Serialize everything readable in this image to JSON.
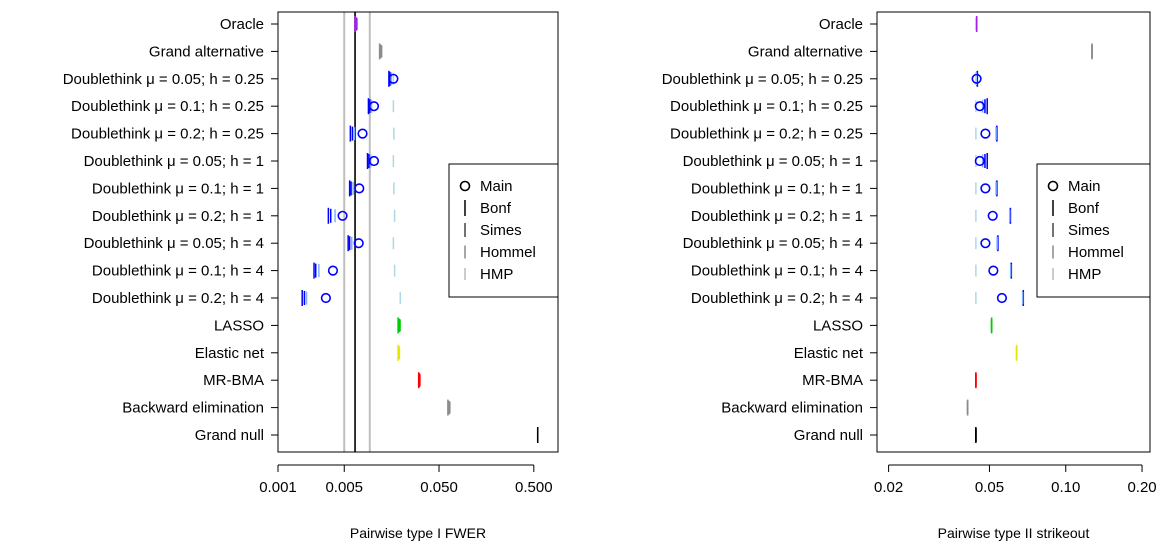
{
  "colors": {
    "Oracle": "#a020f0",
    "Grand alternative": "#8c8c8c",
    "Doublethink": "#0000ff",
    "Doublethink_light": "#7fb2ff",
    "Doublethink_pale": "#add8e6",
    "LASSO": "#00cc00",
    "Elastic net": "#e6e600",
    "MR-BMA": "#ff0000",
    "Backward elimination": "#8c8c8c",
    "Grand null": "#000000",
    "reference_gray": "#bebebe",
    "reference_black": "#000000"
  },
  "legend": {
    "position": "right-middle",
    "entries": [
      {
        "label": "Main",
        "symbol": "circle"
      },
      {
        "label": "Bonf",
        "symbol": "bar-tall"
      },
      {
        "label": "Simes",
        "symbol": "bar-mid"
      },
      {
        "label": "Hommel",
        "symbol": "bar-short"
      },
      {
        "label": "HMP",
        "symbol": "bar-tiny"
      }
    ]
  },
  "chart_data": [
    {
      "type": "scatter",
      "xlabel": "Pairwise type I FWER",
      "ylabel": "",
      "xscale": "log",
      "xlim": [
        0.001,
        0.9
      ],
      "xticks": [
        0.001,
        0.005,
        0.05,
        0.5
      ],
      "xticklabels": [
        "0.001",
        "0.005",
        "0.050",
        "0.500"
      ],
      "reference_lines": [
        {
          "x": 0.005,
          "color": "gray"
        },
        {
          "x": 0.0065,
          "color": "black"
        },
        {
          "x": 0.0093,
          "color": "gray"
        }
      ],
      "categories": [
        "Oracle",
        "Grand alternative",
        "Doublethink μ = 0.05; h = 0.25",
        "Doublethink μ = 0.1; h = 0.25",
        "Doublethink μ = 0.2; h = 0.25",
        "Doublethink μ = 0.05; h = 1",
        "Doublethink μ = 0.1; h = 1",
        "Doublethink μ = 0.2; h = 1",
        "Doublethink μ = 0.05; h = 4",
        "Doublethink μ = 0.1; h = 4",
        "Doublethink μ = 0.2; h = 4",
        "LASSO",
        "Elastic net",
        "MR-BMA",
        "Backward elimination",
        "Grand null"
      ],
      "rows": [
        {
          "name": "Oracle",
          "main": null,
          "bonf": 0.0065,
          "simes": 0.0066,
          "hommel": 0.0067,
          "hmp": 0.0068
        },
        {
          "name": "Grand alternative",
          "main": null,
          "bonf": 0.0118,
          "simes": 0.012,
          "hommel": 0.0122,
          "hmp": 0.0124
        },
        {
          "name": "Doublethink μ = 0.05; h = 0.25",
          "main": 0.0165,
          "bonf": 0.0148,
          "simes": 0.0152,
          "hommel": 0.0157,
          "hmp": 0.0165
        },
        {
          "name": "Doublethink μ = 0.1; h = 0.25",
          "main": 0.0103,
          "bonf": 0.009,
          "simes": 0.0093,
          "hommel": 0.0097,
          "hmp": 0.0165
        },
        {
          "name": "Doublethink μ = 0.2; h = 0.25",
          "main": 0.0078,
          "bonf": 0.0058,
          "simes": 0.0061,
          "hommel": 0.0064,
          "hmp": 0.0167
        },
        {
          "name": "Doublethink μ = 0.05; h = 1",
          "main": 0.0103,
          "bonf": 0.0088,
          "simes": 0.0091,
          "hommel": 0.0095,
          "hmp": 0.0165
        },
        {
          "name": "Doublethink μ = 0.1; h = 1",
          "main": 0.0072,
          "bonf": 0.0057,
          "simes": 0.0059,
          "hommel": 0.0062,
          "hmp": 0.0167
        },
        {
          "name": "Doublethink μ = 0.2; h = 1",
          "main": 0.0048,
          "bonf": 0.0034,
          "simes": 0.0036,
          "hommel": 0.004,
          "hmp": 0.017
        },
        {
          "name": "Doublethink μ = 0.05; h = 4",
          "main": 0.0071,
          "bonf": 0.0055,
          "simes": 0.0057,
          "hommel": 0.006,
          "hmp": 0.0165
        },
        {
          "name": "Doublethink μ = 0.1; h = 4",
          "main": 0.0038,
          "bonf": 0.0024,
          "simes": 0.0025,
          "hommel": 0.0027,
          "hmp": 0.017
        },
        {
          "name": "Doublethink μ = 0.2; h = 4",
          "main": 0.0032,
          "bonf": 0.0018,
          "simes": 0.0019,
          "hommel": 0.002,
          "hmp": 0.0195
        },
        {
          "name": "LASSO",
          "main": null,
          "bonf": 0.0185,
          "simes": 0.0188,
          "hommel": 0.0191,
          "hmp": 0.0194
        },
        {
          "name": "Elastic net",
          "main": null,
          "bonf": 0.0185,
          "simes": 0.0187,
          "hommel": 0.0189,
          "hmp": 0.0191
        },
        {
          "name": "MR-BMA",
          "main": null,
          "bonf": 0.0305,
          "simes": 0.0308,
          "hommel": 0.0311,
          "hmp": 0.0314
        },
        {
          "name": "Backward elimination",
          "main": null,
          "bonf": 0.062,
          "simes": 0.063,
          "hommel": 0.064,
          "hmp": 0.065
        },
        {
          "name": "Grand null",
          "main": null,
          "bonf": 0.55,
          "simes": 0.55,
          "hommel": 0.55,
          "hmp": 0.55
        }
      ]
    },
    {
      "type": "scatter",
      "xlabel": "Pairwise type II strikeout",
      "ylabel": "",
      "xscale": "log",
      "xlim": [
        0.018,
        0.215
      ],
      "xticks": [
        0.02,
        0.05,
        0.1,
        0.2
      ],
      "xticklabels": [
        "0.02",
        "0.05",
        "0.10",
        "0.20"
      ],
      "categories": [
        "Oracle",
        "Grand alternative",
        "Doublethink μ = 0.05; h = 0.25",
        "Doublethink μ = 0.1; h = 0.25",
        "Doublethink μ = 0.2; h = 0.25",
        "Doublethink μ = 0.05; h = 1",
        "Doublethink μ = 0.1; h = 1",
        "Doublethink μ = 0.2; h = 1",
        "Doublethink μ = 0.05; h = 4",
        "Doublethink μ = 0.1; h = 4",
        "Doublethink μ = 0.2; h = 4",
        "LASSO",
        "Elastic net",
        "MR-BMA",
        "Backward elimination",
        "Grand null"
      ],
      "rows": [
        {
          "name": "Oracle",
          "main": null,
          "bonf": 0.0445,
          "simes": 0.0445,
          "hommel": 0.0445,
          "hmp": 0.0445
        },
        {
          "name": "Grand alternative",
          "main": null,
          "bonf": 0.127,
          "simes": 0.127,
          "hommel": 0.127,
          "hmp": 0.127
        },
        {
          "name": "Doublethink μ = 0.05; h = 0.25",
          "main": 0.0445,
          "bonf": 0.0448,
          "simes": 0.0446,
          "hommel": 0.0444,
          "hmp": 0.0442
        },
        {
          "name": "Doublethink μ = 0.1; h = 0.25",
          "main": 0.0458,
          "bonf": 0.049,
          "simes": 0.048,
          "hommel": 0.047,
          "hmp": 0.0442
        },
        {
          "name": "Doublethink μ = 0.2; h = 0.25",
          "main": 0.0482,
          "bonf": 0.0535,
          "simes": 0.0533,
          "hommel": 0.0531,
          "hmp": 0.0442
        },
        {
          "name": "Doublethink μ = 0.05; h = 1",
          "main": 0.0458,
          "bonf": 0.049,
          "simes": 0.048,
          "hommel": 0.047,
          "hmp": 0.0442
        },
        {
          "name": "Doublethink μ = 0.1; h = 1",
          "main": 0.0482,
          "bonf": 0.0535,
          "simes": 0.0533,
          "hommel": 0.0531,
          "hmp": 0.0442
        },
        {
          "name": "Doublethink μ = 0.2; h = 1",
          "main": 0.0515,
          "bonf": 0.0605,
          "simes": 0.0603,
          "hommel": 0.0601,
          "hmp": 0.0442
        },
        {
          "name": "Doublethink μ = 0.05; h = 4",
          "main": 0.0482,
          "bonf": 0.054,
          "simes": 0.0538,
          "hommel": 0.0536,
          "hmp": 0.0442
        },
        {
          "name": "Doublethink μ = 0.1; h = 4",
          "main": 0.0518,
          "bonf": 0.061,
          "simes": 0.0608,
          "hommel": 0.0606,
          "hmp": 0.0442
        },
        {
          "name": "Doublethink μ = 0.2; h = 4",
          "main": 0.056,
          "bonf": 0.068,
          "simes": 0.0678,
          "hommel": 0.0676,
          "hmp": 0.0442
        },
        {
          "name": "LASSO",
          "main": null,
          "bonf": 0.051,
          "simes": 0.051,
          "hommel": 0.051,
          "hmp": 0.051
        },
        {
          "name": "Elastic net",
          "main": null,
          "bonf": 0.064,
          "simes": 0.064,
          "hommel": 0.064,
          "hmp": 0.064
        },
        {
          "name": "MR-BMA",
          "main": null,
          "bonf": 0.0442,
          "simes": 0.0442,
          "hommel": 0.0442,
          "hmp": 0.0442
        },
        {
          "name": "Backward elimination",
          "main": null,
          "bonf": 0.041,
          "simes": 0.041,
          "hommel": 0.041,
          "hmp": 0.041
        },
        {
          "name": "Grand null",
          "main": null,
          "bonf": 0.0442,
          "simes": 0.0442,
          "hommel": 0.0442,
          "hmp": 0.0442
        }
      ]
    }
  ]
}
